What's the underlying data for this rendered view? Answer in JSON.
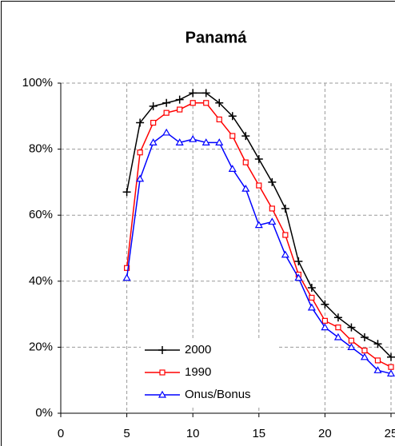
{
  "chart_data": {
    "type": "line",
    "title": "Panamá",
    "x": [
      5,
      6,
      7,
      8,
      9,
      10,
      11,
      12,
      13,
      14,
      15,
      16,
      17,
      18,
      19,
      20,
      21,
      22,
      23,
      24,
      25
    ],
    "series": [
      {
        "name": "2000",
        "color": "#000000",
        "marker": "plus",
        "values": [
          67,
          88,
          93,
          94,
          95,
          97,
          97,
          94,
          90,
          84,
          77,
          70,
          62,
          46,
          38,
          33,
          29,
          26,
          23,
          21,
          17
        ]
      },
      {
        "name": "1990",
        "color": "#ff0000",
        "marker": "square",
        "values": [
          44,
          79,
          88,
          91,
          92,
          94,
          94,
          89,
          84,
          76,
          69,
          62,
          54,
          42,
          35,
          28,
          26,
          22,
          19,
          16,
          14
        ]
      },
      {
        "name": "Onus/Bonus",
        "color": "#0000ff",
        "marker": "triangle",
        "values": [
          41,
          71,
          82,
          85,
          82,
          83,
          82,
          82,
          74,
          68,
          57,
          58,
          48,
          41,
          32,
          26,
          23,
          20,
          17,
          13,
          12
        ]
      }
    ],
    "xlim": [
      0,
      25
    ],
    "xticks": [
      0,
      5,
      10,
      15,
      20,
      25
    ],
    "ylim": [
      0,
      100
    ],
    "yticks": [
      {
        "value": 0,
        "label": "0%"
      },
      {
        "value": 20,
        "label": "20%"
      },
      {
        "value": 40,
        "label": "40%"
      },
      {
        "value": 60,
        "label": "60%"
      },
      {
        "value": 80,
        "label": "80%"
      },
      {
        "value": 100,
        "label": "100%"
      }
    ],
    "grid": true
  }
}
